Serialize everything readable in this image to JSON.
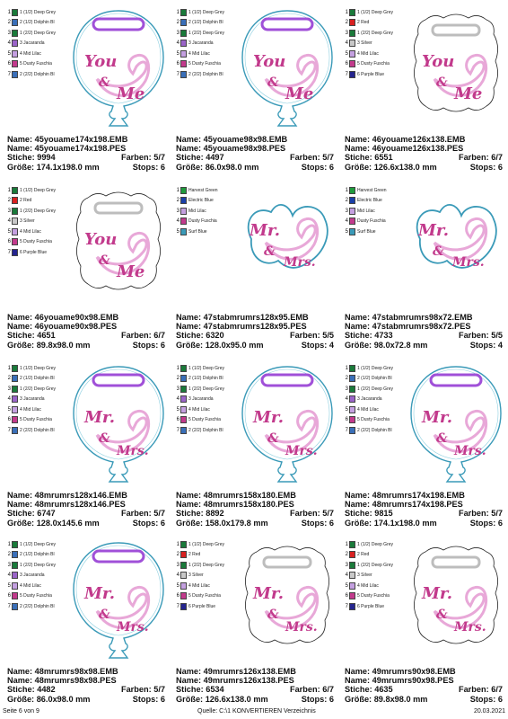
{
  "labels": {
    "name": "Name:",
    "stiche": "Stiche:",
    "groesse": "Größe:",
    "farben": "Farben:",
    "stops": "Stops:"
  },
  "colors": {
    "Deep Grey": "#1a7a3a",
    "Dolphin Blue": "#3a6fb8",
    "Jacaranda": "#9a64c8",
    "Mid Lilac": "#c4a0e0",
    "Dusty Fuschia": "#c23a8c",
    "Red": "#d82020",
    "Silver": "#c8c8c8",
    "Purple Blue": "#24248e",
    "Harvest Green": "#1f9a3c",
    "Electric Blue": "#1a3fa8",
    "Surf Blue": "#3a9ab8"
  },
  "designs": [
    {
      "name1": "45youame174x198.EMB",
      "name2": "45youame174x198.PES",
      "stiche": "9994",
      "groesse": "174.1x198.0 mm",
      "farben": "5/7",
      "stops": "6",
      "shape": "balloon",
      "text": "you",
      "threads": [
        {
          "n": "1",
          "label": "1 (1/2) Deep Grey",
          "key": "Deep Grey"
        },
        {
          "n": "2",
          "label": "2 (1/2) Dolphin Bl",
          "key": "Dolphin Blue"
        },
        {
          "n": "3",
          "label": "1 (2/2) Deep Grey",
          "key": "Deep Grey"
        },
        {
          "n": "4",
          "label": "3 Jacaranda",
          "key": "Jacaranda"
        },
        {
          "n": "5",
          "label": "4 Mid Lilac",
          "key": "Mid Lilac"
        },
        {
          "n": "6",
          "label": "5 Dusty Fuschia",
          "key": "Dusty Fuschia"
        },
        {
          "n": "7",
          "label": "2 (2/2) Dolphin Bl",
          "key": "Dolphin Blue"
        }
      ]
    },
    {
      "name1": "45youame98x98.EMB",
      "name2": "45youame98x98.PES",
      "stiche": "4497",
      "groesse": "86.0x98.0 mm",
      "farben": "5/7",
      "stops": "6",
      "shape": "balloon",
      "text": "you",
      "threads": [
        {
          "n": "1",
          "label": "1 (1/2) Deep Grey",
          "key": "Deep Grey"
        },
        {
          "n": "2",
          "label": "2 (1/2) Dolphin Bl",
          "key": "Dolphin Blue"
        },
        {
          "n": "3",
          "label": "1 (2/2) Deep Grey",
          "key": "Deep Grey"
        },
        {
          "n": "4",
          "label": "3 Jacaranda",
          "key": "Jacaranda"
        },
        {
          "n": "5",
          "label": "4 Mid Lilac",
          "key": "Mid Lilac"
        },
        {
          "n": "6",
          "label": "5 Dusty Fuschia",
          "key": "Dusty Fuschia"
        },
        {
          "n": "7",
          "label": "2 (2/2) Dolphin Bl",
          "key": "Dolphin Blue"
        }
      ]
    },
    {
      "name1": "46youame126x138.EMB",
      "name2": "46youame126x138.PES",
      "stiche": "6551",
      "groesse": "126.6x138.0 mm",
      "farben": "6/7",
      "stops": "6",
      "shape": "frame",
      "text": "you",
      "threads": [
        {
          "n": "1",
          "label": "1 (1/2) Deep Grey",
          "key": "Deep Grey"
        },
        {
          "n": "2",
          "label": "2 Red",
          "key": "Red"
        },
        {
          "n": "3",
          "label": "1 (2/2) Deep Grey",
          "key": "Deep Grey"
        },
        {
          "n": "4",
          "label": "3 Silver",
          "key": "Silver"
        },
        {
          "n": "5",
          "label": "4 Mid Lilac",
          "key": "Mid Lilac"
        },
        {
          "n": "6",
          "label": "5 Dusty Fuschia",
          "key": "Dusty Fuschia"
        },
        {
          "n": "7",
          "label": "6 Purple Blue",
          "key": "Purple Blue"
        }
      ]
    },
    {
      "name1": "46youame90x98.EMB",
      "name2": "46youame90x98.PES",
      "stiche": "4651",
      "groesse": "89.8x98.0 mm",
      "farben": "6/7",
      "stops": "6",
      "shape": "frame",
      "text": "you",
      "threads": [
        {
          "n": "1",
          "label": "1 (1/2) Deep Grey",
          "key": "Deep Grey"
        },
        {
          "n": "2",
          "label": "2 Red",
          "key": "Red"
        },
        {
          "n": "3",
          "label": "1 (2/2) Deep Grey",
          "key": "Deep Grey"
        },
        {
          "n": "4",
          "label": "3 Silver",
          "key": "Silver"
        },
        {
          "n": "5",
          "label": "4 Mid Lilac",
          "key": "Mid Lilac"
        },
        {
          "n": "6",
          "label": "5 Dusty Fuschia",
          "key": "Dusty Fuschia"
        },
        {
          "n": "7",
          "label": "6 Purple Blue",
          "key": "Purple Blue"
        }
      ]
    },
    {
      "name1": "47stabmrumrs128x95.EMB",
      "name2": "47stabmrumrs128x95.PES",
      "stiche": "6320",
      "groesse": "128.0x95.0 mm",
      "farben": "5/5",
      "stops": "4",
      "shape": "cutout",
      "text": "mrs",
      "threads": [
        {
          "n": "1",
          "label": "Harvest Green",
          "key": "Harvest Green"
        },
        {
          "n": "2",
          "label": "Electric Blue",
          "key": "Electric Blue"
        },
        {
          "n": "3",
          "label": "Mid Lilac",
          "key": "Mid Lilac"
        },
        {
          "n": "4",
          "label": "Dusty Fuschia",
          "key": "Dusty Fuschia"
        },
        {
          "n": "5",
          "label": "Surf Blue",
          "key": "Surf Blue"
        }
      ]
    },
    {
      "name1": "47stabmrumrs98x72.EMB",
      "name2": "47stabmrumrs98x72.PES",
      "stiche": "4733",
      "groesse": "98.0x72.8 mm",
      "farben": "5/5",
      "stops": "4",
      "shape": "cutout",
      "text": "mrs",
      "threads": [
        {
          "n": "1",
          "label": "Harvest Green",
          "key": "Harvest Green"
        },
        {
          "n": "2",
          "label": "Electric Blue",
          "key": "Electric Blue"
        },
        {
          "n": "3",
          "label": "Mid Lilac",
          "key": "Mid Lilac"
        },
        {
          "n": "4",
          "label": "Dusty Fuschia",
          "key": "Dusty Fuschia"
        },
        {
          "n": "5",
          "label": "Surf Blue",
          "key": "Surf Blue"
        }
      ]
    },
    {
      "name1": "48mrumrs128x146.EMB",
      "name2": "48mrumrs128x146.PES",
      "stiche": "6747",
      "groesse": "128.0x145.6 mm",
      "farben": "5/7",
      "stops": "6",
      "shape": "balloon",
      "text": "mrs",
      "threads": [
        {
          "n": "1",
          "label": "1 (1/2) Deep Grey",
          "key": "Deep Grey"
        },
        {
          "n": "2",
          "label": "2 (1/2) Dolphin Bl",
          "key": "Dolphin Blue"
        },
        {
          "n": "3",
          "label": "1 (2/2) Deep Grey",
          "key": "Deep Grey"
        },
        {
          "n": "4",
          "label": "3 Jacaranda",
          "key": "Jacaranda"
        },
        {
          "n": "5",
          "label": "4 Mid Lilac",
          "key": "Mid Lilac"
        },
        {
          "n": "6",
          "label": "5 Dusty Fuschia",
          "key": "Dusty Fuschia"
        },
        {
          "n": "7",
          "label": "2 (2/2) Dolphin Bl",
          "key": "Dolphin Blue"
        }
      ]
    },
    {
      "name1": "48mrumrs158x180.EMB",
      "name2": "48mrumrs158x180.PES",
      "stiche": "8892",
      "groesse": "158.0x179.8 mm",
      "farben": "5/7",
      "stops": "6",
      "shape": "balloon",
      "text": "mrs",
      "threads": [
        {
          "n": "1",
          "label": "1 (1/2) Deep Grey",
          "key": "Deep Grey"
        },
        {
          "n": "2",
          "label": "2 (1/2) Dolphin Bl",
          "key": "Dolphin Blue"
        },
        {
          "n": "3",
          "label": "1 (2/2) Deep Grey",
          "key": "Deep Grey"
        },
        {
          "n": "4",
          "label": "3 Jacaranda",
          "key": "Jacaranda"
        },
        {
          "n": "5",
          "label": "4 Mid Lilac",
          "key": "Mid Lilac"
        },
        {
          "n": "6",
          "label": "5 Dusty Fuschia",
          "key": "Dusty Fuschia"
        },
        {
          "n": "7",
          "label": "2 (2/2) Dolphin Bl",
          "key": "Dolphin Blue"
        }
      ]
    },
    {
      "name1": "48mrumrs174x198.EMB",
      "name2": "48mrumrs174x198.PES",
      "stiche": "9815",
      "groesse": "174.1x198.0 mm",
      "farben": "5/7",
      "stops": "6",
      "shape": "balloon",
      "text": "mrs",
      "threads": [
        {
          "n": "1",
          "label": "1 (1/2) Deep Grey",
          "key": "Deep Grey"
        },
        {
          "n": "2",
          "label": "2 (1/2) Dolphin Bl",
          "key": "Dolphin Blue"
        },
        {
          "n": "3",
          "label": "1 (2/2) Deep Grey",
          "key": "Deep Grey"
        },
        {
          "n": "4",
          "label": "3 Jacaranda",
          "key": "Jacaranda"
        },
        {
          "n": "5",
          "label": "4 Mid Lilac",
          "key": "Mid Lilac"
        },
        {
          "n": "6",
          "label": "5 Dusty Fuschia",
          "key": "Dusty Fuschia"
        },
        {
          "n": "7",
          "label": "2 (2/2) Dolphin Bl",
          "key": "Dolphin Blue"
        }
      ]
    },
    {
      "name1": "48mrumrs98x98.EMB",
      "name2": "48mrumrs98x98.PES",
      "stiche": "4482",
      "groesse": "86.0x98.0 mm",
      "farben": "5/7",
      "stops": "6",
      "shape": "balloon",
      "text": "mrs",
      "threads": [
        {
          "n": "1",
          "label": "1 (1/2) Deep Grey",
          "key": "Deep Grey"
        },
        {
          "n": "2",
          "label": "2 (1/2) Dolphin Bl",
          "key": "Dolphin Blue"
        },
        {
          "n": "3",
          "label": "1 (2/2) Deep Grey",
          "key": "Deep Grey"
        },
        {
          "n": "4",
          "label": "3 Jacaranda",
          "key": "Jacaranda"
        },
        {
          "n": "5",
          "label": "4 Mid Lilac",
          "key": "Mid Lilac"
        },
        {
          "n": "6",
          "label": "5 Dusty Fuschia",
          "key": "Dusty Fuschia"
        },
        {
          "n": "7",
          "label": "2 (2/2) Dolphin Bl",
          "key": "Dolphin Blue"
        }
      ]
    },
    {
      "name1": "49mrumrs126x138.EMB",
      "name2": "49mrumrs126x138.PES",
      "stiche": "6534",
      "groesse": "126.6x138.0 mm",
      "farben": "6/7",
      "stops": "6",
      "shape": "frame",
      "text": "mrs",
      "threads": [
        {
          "n": "1",
          "label": "1 (1/2) Deep Grey",
          "key": "Deep Grey"
        },
        {
          "n": "2",
          "label": "2 Red",
          "key": "Red"
        },
        {
          "n": "3",
          "label": "1 (2/2) Deep Grey",
          "key": "Deep Grey"
        },
        {
          "n": "4",
          "label": "3 Silver",
          "key": "Silver"
        },
        {
          "n": "5",
          "label": "4 Mid Lilac",
          "key": "Mid Lilac"
        },
        {
          "n": "6",
          "label": "5 Dusty Fuschia",
          "key": "Dusty Fuschia"
        },
        {
          "n": "7",
          "label": "6 Purple Blue",
          "key": "Purple Blue"
        }
      ]
    },
    {
      "name1": "49mrumrs90x98.EMB",
      "name2": "49mrumrs90x98.PES",
      "stiche": "4635",
      "groesse": "89.8x98.0 mm",
      "farben": "6/7",
      "stops": "6",
      "shape": "frame",
      "text": "mrs",
      "threads": [
        {
          "n": "1",
          "label": "1 (1/2) Deep Grey",
          "key": "Deep Grey"
        },
        {
          "n": "2",
          "label": "2 Red",
          "key": "Red"
        },
        {
          "n": "3",
          "label": "1 (2/2) Deep Grey",
          "key": "Deep Grey"
        },
        {
          "n": "4",
          "label": "3 Silver",
          "key": "Silver"
        },
        {
          "n": "5",
          "label": "4 Mid Lilac",
          "key": "Mid Lilac"
        },
        {
          "n": "6",
          "label": "5 Dusty Fuschia",
          "key": "Dusty Fuschia"
        },
        {
          "n": "7",
          "label": "6 Purple Blue",
          "key": "Purple Blue"
        }
      ]
    }
  ],
  "design_text": {
    "you": {
      "line1": "You",
      "line2": "&",
      "line3": "Me"
    },
    "mrs": {
      "line1": "Mr.",
      "line2": "&",
      "line3": "Mrs."
    }
  },
  "footer": {
    "page": "Seite 6 von 9",
    "source": "Quelle: C:\\1 KONVERTIEREN Verzeichnis",
    "date": "20.03.2021"
  }
}
